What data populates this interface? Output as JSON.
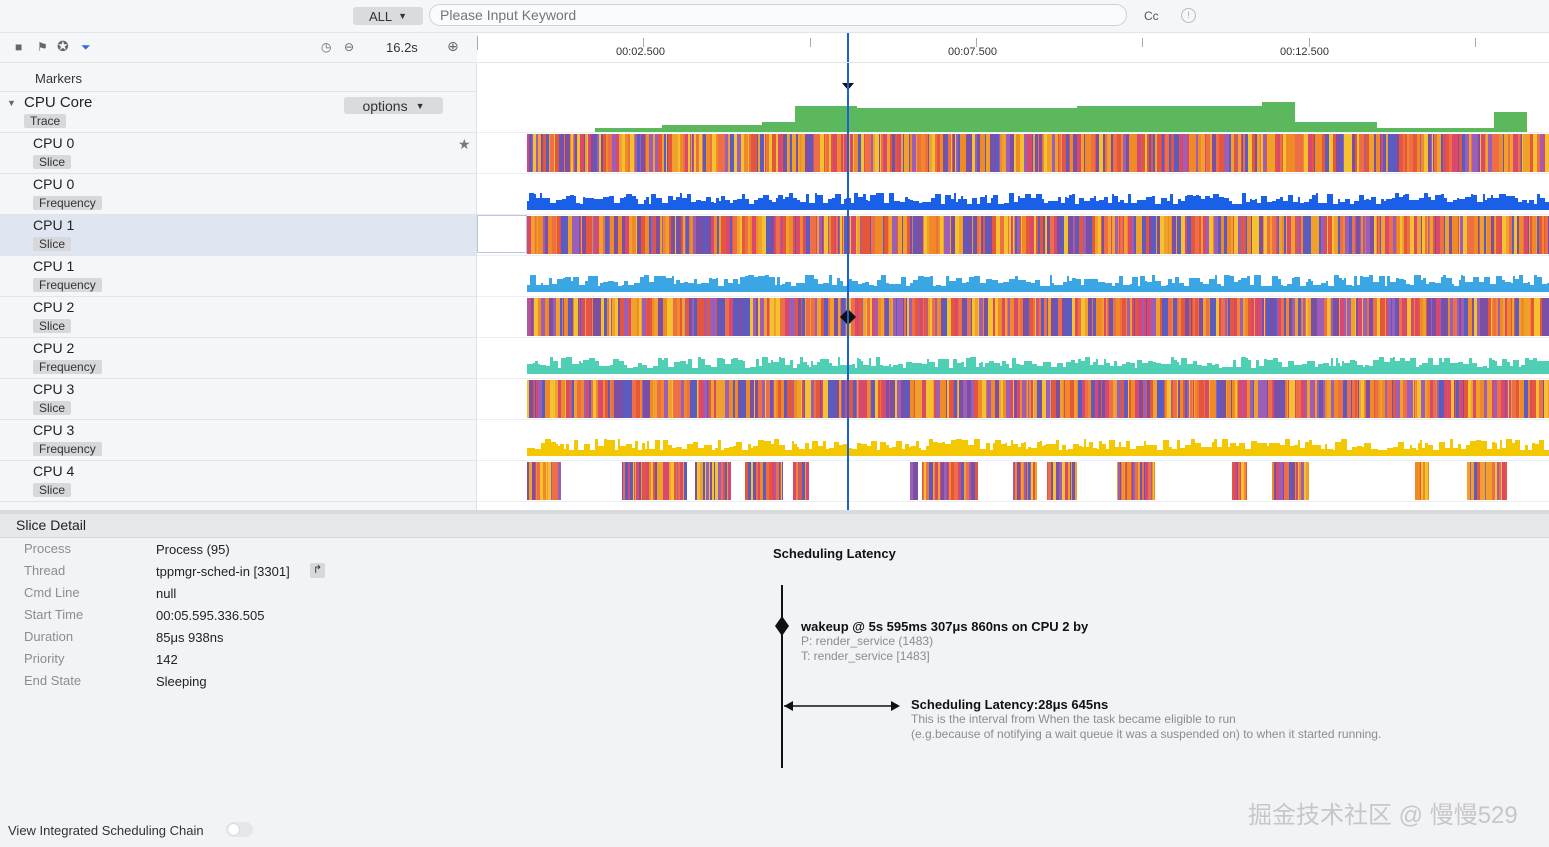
{
  "search": {
    "scope": "ALL",
    "placeholder": "Please Input Keyword",
    "case_label": "Cc",
    "info": "!"
  },
  "toolbar": {
    "zoom_value": "16.2s"
  },
  "ruler": {
    "ticks": [
      "00:02.500",
      "00:07.500",
      "00:12.500"
    ]
  },
  "tracks": {
    "markers_label": "Markers",
    "cpu_core": {
      "name": "CPU Core",
      "chip": "Trace",
      "options_label": "options"
    },
    "rows": [
      {
        "name": "CPU 0",
        "chip": "Slice"
      },
      {
        "name": "CPU 0",
        "chip": "Frequency"
      },
      {
        "name": "CPU 1",
        "chip": "Slice"
      },
      {
        "name": "CPU 1",
        "chip": "Frequency"
      },
      {
        "name": "CPU 2",
        "chip": "Slice"
      },
      {
        "name": "CPU 2",
        "chip": "Frequency"
      },
      {
        "name": "CPU 3",
        "chip": "Slice"
      },
      {
        "name": "CPU 3",
        "chip": "Frequency"
      },
      {
        "name": "CPU 4",
        "chip": "Slice"
      }
    ],
    "colors": {
      "core_green": "#5cb85c",
      "cpu0_freq": "#1a5fe8",
      "cpu1_freq": "#3aa7e4",
      "cpu2_freq": "#4fd0b4",
      "cpu3_freq": "#f3c800",
      "cursor": "#1d5fd6"
    }
  },
  "detail": {
    "title": "Slice Detail",
    "fields": [
      {
        "label": "Process",
        "value": "Process (95)"
      },
      {
        "label": "Thread",
        "value": "tppmgr-sched-in [3301]"
      },
      {
        "label": "Cmd Line",
        "value": "null"
      },
      {
        "label": "Start Time",
        "value": "00:05.595.336.505"
      },
      {
        "label": "Duration",
        "value": "85μs 938ns"
      },
      {
        "label": "Priority",
        "value": "142"
      },
      {
        "label": "End State",
        "value": "Sleeping"
      }
    ],
    "scheduling": {
      "title": "Scheduling Latency",
      "wakeup": "wakeup @ 5s 595ms 307μs 860ns on CPU 2 by",
      "process": "P: render_service (1483)",
      "thread": "T: render_service [1483]",
      "latency_title": "Scheduling Latency:28μs 645ns",
      "latency_desc_1": "This is the interval from When the task became eligible to run",
      "latency_desc_2": "(e.g.because of notifying a wait queue it was a suspended on) to when it started running."
    }
  },
  "footer": {
    "chain_label": "View Integrated Scheduling Chain",
    "watermark": "掘金技术社区 @ 慢慢529"
  }
}
